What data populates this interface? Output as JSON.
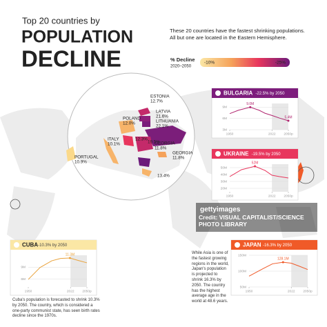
{
  "header": {
    "kicker": "Top 20 countries by",
    "title_line1": "POPULATION",
    "title_line2": "DECLINE",
    "description": "These 20 countries have the fastest shrinking populations. All but one are located in the Eastern Hemisphere.",
    "legend_title": "% Decline",
    "legend_subtitle": "2020–2050",
    "legend_min": "-10%",
    "legend_max": "-25%"
  },
  "map_labels": [
    {
      "label": "ESTONIA",
      "value": "12.7%"
    },
    {
      "label": "LATVIA",
      "value": "21.6%"
    },
    {
      "label": "LITHUANIA",
      "value": "22.1%"
    },
    {
      "label": "POLAND",
      "value": "12.0%"
    },
    {
      "label": "ITALY",
      "value": "10.1%"
    },
    {
      "label": "PORTUGAL",
      "value": "10.9%"
    },
    {
      "label": "GEORGIA",
      "value": "11.8%"
    },
    {
      "label": "GEORGIA",
      "value": "11.8%"
    },
    {
      "label": "",
      "value": "12.3%"
    },
    {
      "label": "",
      "value": "19.5%"
    },
    {
      "label": "",
      "value": "13.4%"
    }
  ],
  "panels": [
    {
      "name": "BULGARIA",
      "subtitle": "-22.5% by 2050",
      "color": "#7d1d7c",
      "line_color": "#b0246e",
      "xlim": [
        1950,
        2050
      ],
      "ylim": [
        3,
        10
      ],
      "yticks": [
        {
          "value": 3,
          "label": "3M"
        },
        {
          "value": 6,
          "label": "6M"
        },
        {
          "value": 9,
          "label": "9M"
        }
      ],
      "xticks": [
        1950,
        2022,
        {
          "value": 2050,
          "label": "2050p"
        }
      ],
      "x": [
        1950,
        1965,
        1985,
        2000,
        2010,
        2022,
        2035,
        2050
      ],
      "values": [
        7.3,
        8.2,
        9.0,
        8.2,
        7.4,
        6.8,
        6.1,
        5.4
      ],
      "value_labels": [
        null,
        null,
        "9.0M",
        null,
        null,
        null,
        null,
        "5.4M"
      ]
    },
    {
      "name": "UKRAINE",
      "subtitle": "-19.5% by 2050",
      "color": "#e8365d",
      "line_color": "#e8365d",
      "xlim": [
        1950,
        2050
      ],
      "ylim": [
        15,
        55
      ],
      "yticks": [
        {
          "value": 20,
          "label": "20M"
        },
        {
          "value": 30,
          "label": "30M"
        },
        {
          "value": 40,
          "label": "40M"
        },
        {
          "value": 50,
          "label": "50M"
        }
      ],
      "xticks": [
        1950,
        2022,
        {
          "value": 2050,
          "label": "2050p"
        }
      ],
      "x": [
        1950,
        1970,
        1993,
        2010,
        2022,
        2035,
        2050
      ],
      "values": [
        37,
        47,
        52,
        46,
        39,
        37,
        35
      ],
      "value_labels": [
        null,
        null,
        "52M",
        null,
        null,
        null,
        null
      ]
    },
    {
      "name": "CUBA",
      "subtitle": "-10.3% by 2050",
      "color": "#fbe7a5",
      "line_color": "#e9a23b",
      "xlim": [
        1950,
        2050
      ],
      "ylim": [
        4,
        12
      ],
      "yticks": [
        {
          "value": 6,
          "label": "6M"
        },
        {
          "value": 9,
          "label": "9M"
        }
      ],
      "xticks": [
        1950,
        2022,
        {
          "value": 2050,
          "label": "2050p"
        }
      ],
      "x": [
        1950,
        1970,
        1990,
        2005,
        2021,
        2035,
        2050
      ],
      "values": [
        5.9,
        8.9,
        10.6,
        11.2,
        11.3,
        10.7,
        10.1
      ],
      "value_labels": [
        null,
        null,
        null,
        null,
        "11.3M",
        null,
        null
      ],
      "note": "Cuba's population is forecasted to shrink 10.3% by 2050. The country, which is considered a one-party communist state, has seen birth rates decline since the 1970s."
    },
    {
      "name": "JAPAN",
      "subtitle": "-16.3% by 2050",
      "color": "#f05a28",
      "line_color": "#f05a28",
      "xlim": [
        1950,
        2050
      ],
      "ylim": [
        50,
        150
      ],
      "yticks": [
        {
          "value": 50,
          "label": "50M"
        },
        {
          "value": 100,
          "label": "100M"
        },
        {
          "value": 150,
          "label": "150M"
        }
      ],
      "xticks": [
        1950,
        2022,
        {
          "value": 2050,
          "label": "2050p"
        }
      ],
      "x": [
        1950,
        1970,
        1990,
        2008,
        2022,
        2035,
        2050
      ],
      "values": [
        84,
        104,
        123,
        128.1,
        125,
        116,
        105
      ],
      "value_labels": [
        null,
        null,
        null,
        "128.1M",
        null,
        null,
        null
      ],
      "note": "While Asia is one of the fastest growing regions in the world, Japan's population is projected to shrink 16.3% by 2050. The country has the highest average age in the world at 48.6 years."
    }
  ],
  "watermark": {
    "brand": "gettyimages",
    "credit": "Credit: VISUAL CAPITALIST/SCIENCE PHOTO LIBRARY"
  }
}
